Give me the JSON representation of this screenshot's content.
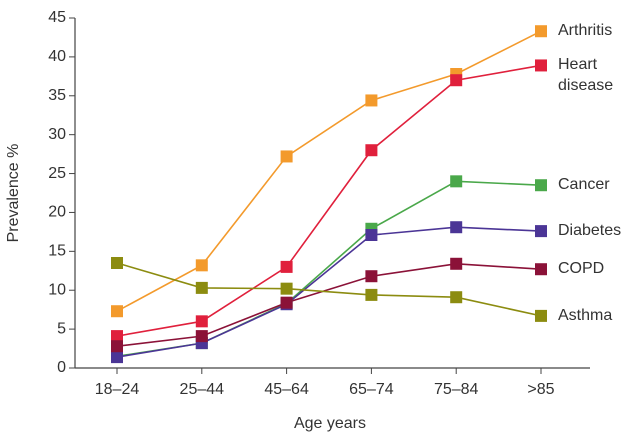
{
  "chart_data": {
    "type": "line",
    "x_label": "Age years",
    "y_label": "Prevalence %",
    "categories": [
      "18–24",
      "25–44",
      "45–64",
      "65–74",
      "75–84",
      ">85"
    ],
    "series": [
      {
        "name": "Arthritis",
        "color": "#f39a2c",
        "values": [
          7.3,
          13.2,
          27.2,
          34.4,
          37.8,
          43.3
        ]
      },
      {
        "name": "Heart disease",
        "color": "#e0203c",
        "values": [
          4.1,
          6.0,
          13.0,
          28.0,
          37.0,
          38.9
        ]
      },
      {
        "name": "Cancer",
        "color": "#4aa84a",
        "values": [
          1.5,
          3.2,
          8.3,
          17.9,
          24.0,
          23.5
        ]
      },
      {
        "name": "Diabetes",
        "color": "#4b3596",
        "values": [
          1.4,
          3.2,
          8.2,
          17.1,
          18.1,
          17.6
        ]
      },
      {
        "name": "COPD",
        "color": "#8b1238",
        "values": [
          2.8,
          4.1,
          8.4,
          11.8,
          13.4,
          12.7
        ]
      },
      {
        "name": "Asthma",
        "color": "#8c8c10",
        "values": [
          13.5,
          10.3,
          10.2,
          9.4,
          9.1,
          6.7
        ]
      }
    ],
    "ylim": [
      0,
      45
    ],
    "yticks": [
      0,
      5,
      10,
      15,
      20,
      25,
      30,
      35,
      40,
      45
    ]
  }
}
